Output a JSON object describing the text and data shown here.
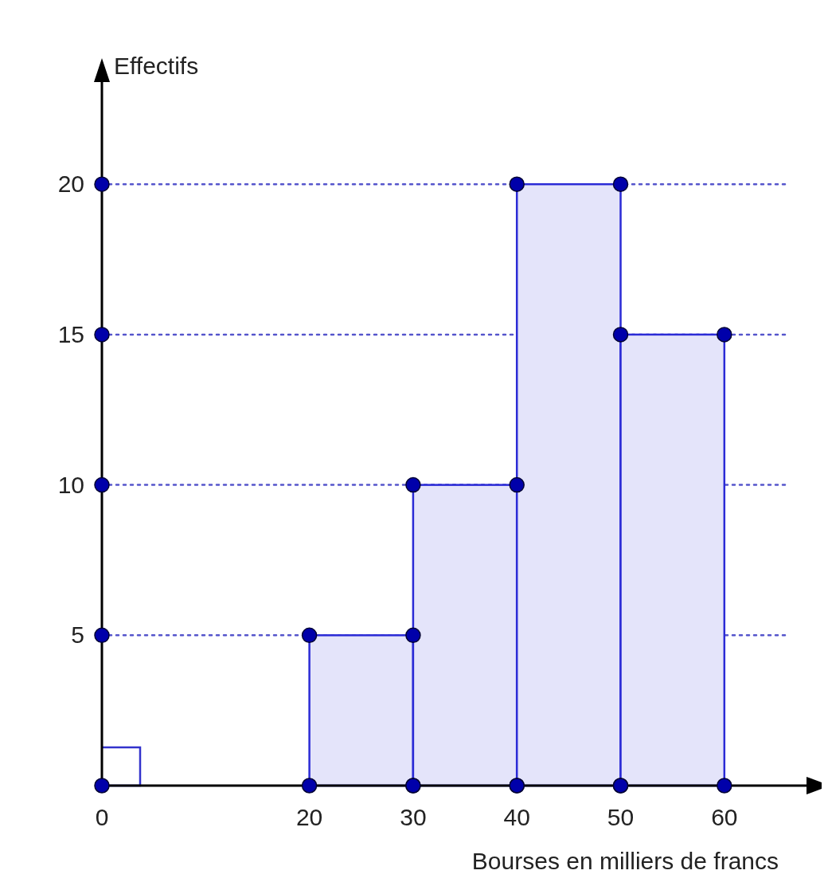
{
  "chart_data": {
    "type": "histogram",
    "xlabel": "Bourses en milliers de francs",
    "ylabel": "Effectifs",
    "bins": [
      20,
      30,
      40,
      50,
      60
    ],
    "values": [
      5,
      10,
      20,
      15
    ],
    "color": "#e4e4fa",
    "xlim": [
      0,
      66
    ],
    "ylim": [
      0,
      23
    ],
    "xticks": [
      0,
      20,
      30,
      40,
      50,
      60
    ],
    "yticks": [
      5,
      10,
      15,
      20
    ],
    "grid": "y",
    "marker": "circle"
  }
}
